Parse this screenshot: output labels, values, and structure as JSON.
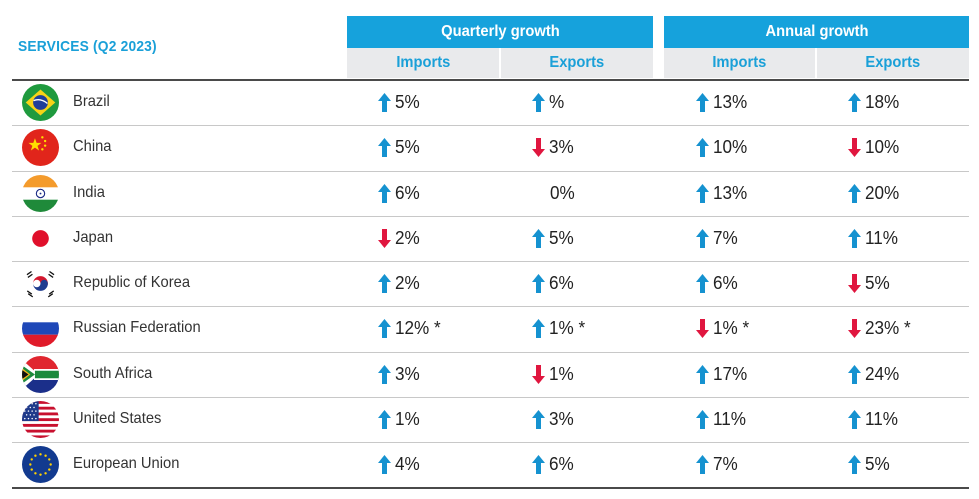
{
  "title": "SERVICES (Q2 2023)",
  "groups": {
    "quarterly": "Quarterly growth",
    "annual": "Annual growth"
  },
  "columns": {
    "q_imports": "Imports",
    "q_exports": "Exports",
    "a_imports": "Imports",
    "a_exports": "Exports"
  },
  "colors": {
    "accent": "#16a2dc",
    "up": "#1592d0",
    "down": "#e0163f",
    "subheader_bg": "#e9eaec"
  },
  "rows": [
    {
      "country": "Brazil",
      "flag": "brazil-flag-icon",
      "q_imports": {
        "dir": "up",
        "text": "5%"
      },
      "q_exports": {
        "dir": "up",
        "text": "%"
      },
      "a_imports": {
        "dir": "up",
        "text": "13%"
      },
      "a_exports": {
        "dir": "up",
        "text": "18%"
      }
    },
    {
      "country": "China",
      "flag": "china-flag-icon",
      "q_imports": {
        "dir": "up",
        "text": "5%"
      },
      "q_exports": {
        "dir": "down",
        "text": "3%"
      },
      "a_imports": {
        "dir": "up",
        "text": "10%"
      },
      "a_exports": {
        "dir": "down",
        "text": "10%"
      }
    },
    {
      "country": "India",
      "flag": "india-flag-icon",
      "q_imports": {
        "dir": "up",
        "text": "6%"
      },
      "q_exports": {
        "dir": "none",
        "text": "0%"
      },
      "a_imports": {
        "dir": "up",
        "text": "13%"
      },
      "a_exports": {
        "dir": "up",
        "text": "20%"
      }
    },
    {
      "country": "Japan",
      "flag": "japan-flag-icon",
      "q_imports": {
        "dir": "down",
        "text": "2%"
      },
      "q_exports": {
        "dir": "up",
        "text": "5%"
      },
      "a_imports": {
        "dir": "up",
        "text": "7%"
      },
      "a_exports": {
        "dir": "up",
        "text": "11%"
      }
    },
    {
      "country": "Republic of Korea",
      "flag": "korea-flag-icon",
      "q_imports": {
        "dir": "up",
        "text": "2%"
      },
      "q_exports": {
        "dir": "up",
        "text": "6%"
      },
      "a_imports": {
        "dir": "up",
        "text": "6%"
      },
      "a_exports": {
        "dir": "down",
        "text": "5%"
      }
    },
    {
      "country": "Russian Federation",
      "flag": "russia-flag-icon",
      "q_imports": {
        "dir": "up",
        "text": "12% *"
      },
      "q_exports": {
        "dir": "up",
        "text": "1% *"
      },
      "a_imports": {
        "dir": "down",
        "text": "1% *"
      },
      "a_exports": {
        "dir": "down",
        "text": "23% *"
      }
    },
    {
      "country": "South Africa",
      "flag": "south-africa-flag-icon",
      "q_imports": {
        "dir": "up",
        "text": "3%"
      },
      "q_exports": {
        "dir": "down",
        "text": "1%"
      },
      "a_imports": {
        "dir": "up",
        "text": "17%"
      },
      "a_exports": {
        "dir": "up",
        "text": "24%"
      }
    },
    {
      "country": "United States",
      "flag": "usa-flag-icon",
      "q_imports": {
        "dir": "up",
        "text": "1%"
      },
      "q_exports": {
        "dir": "up",
        "text": "3%"
      },
      "a_imports": {
        "dir": "up",
        "text": "11%"
      },
      "a_exports": {
        "dir": "up",
        "text": "11%"
      }
    },
    {
      "country": "European Union",
      "flag": "eu-flag-icon",
      "q_imports": {
        "dir": "up",
        "text": "4%"
      },
      "q_exports": {
        "dir": "up",
        "text": "6%"
      },
      "a_imports": {
        "dir": "up",
        "text": "7%"
      },
      "a_exports": {
        "dir": "up",
        "text": "5%"
      }
    }
  ]
}
